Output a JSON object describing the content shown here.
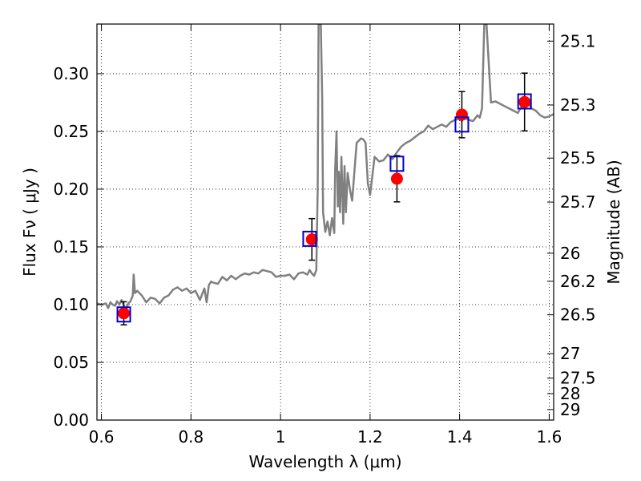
{
  "chart_data": {
    "type": "line",
    "title": "",
    "xlabel": "Wavelength  λ (μm)",
    "ylabel": "Flux  Fν  ( μJy )",
    "y2label": "Magnitude (AB)",
    "xlim": [
      0.59,
      1.61
    ],
    "ylim": [
      0.0,
      0.343
    ],
    "grid": true,
    "x_ticks": [
      {
        "value": 0.6,
        "label": "0.6"
      },
      {
        "value": 0.8,
        "label": "0.8"
      },
      {
        "value": 1.0,
        "label": "1"
      },
      {
        "value": 1.2,
        "label": "1.2"
      },
      {
        "value": 1.4,
        "label": "1.4"
      },
      {
        "value": 1.6,
        "label": "1.6"
      }
    ],
    "y_ticks": [
      {
        "value": 0.0,
        "label": "0.00"
      },
      {
        "value": 0.05,
        "label": "0.05"
      },
      {
        "value": 0.1,
        "label": "0.10"
      },
      {
        "value": 0.15,
        "label": "0.15"
      },
      {
        "value": 0.2,
        "label": "0.20"
      },
      {
        "value": 0.25,
        "label": "0.25"
      },
      {
        "value": 0.3,
        "label": "0.30"
      }
    ],
    "y2_ticks": [
      {
        "flux": 0.3282,
        "label": "25.1"
      },
      {
        "flux": 0.2729,
        "label": "25.3"
      },
      {
        "flux": 0.2269,
        "label": "25.5"
      },
      {
        "flux": 0.1888,
        "label": "25.7"
      },
      {
        "flux": 0.1445,
        "label": "26"
      },
      {
        "flux": 0.1202,
        "label": "26.2"
      },
      {
        "flux": 0.0912,
        "label": "26.5"
      },
      {
        "flux": 0.0575,
        "label": "27"
      },
      {
        "flux": 0.0363,
        "label": "27.5"
      },
      {
        "flux": 0.0229,
        "label": "28"
      },
      {
        "flux": 0.0091,
        "label": "29"
      }
    ],
    "series": [
      {
        "kind": "model_spectrum",
        "color": "#808080",
        "x": [
          0.59,
          0.6,
          0.61,
          0.615,
          0.62,
          0.625,
          0.63,
          0.635,
          0.64,
          0.645,
          0.65,
          0.655,
          0.66,
          0.665,
          0.67,
          0.672,
          0.675,
          0.68,
          0.69,
          0.7,
          0.71,
          0.72,
          0.73,
          0.74,
          0.75,
          0.76,
          0.77,
          0.78,
          0.79,
          0.8,
          0.81,
          0.82,
          0.83,
          0.835,
          0.84,
          0.845,
          0.85,
          0.86,
          0.87,
          0.88,
          0.89,
          0.9,
          0.91,
          0.92,
          0.93,
          0.94,
          0.95,
          0.96,
          0.97,
          0.98,
          0.99,
          1.0,
          1.01,
          1.02,
          1.03,
          1.04,
          1.05,
          1.06,
          1.065,
          1.07,
          1.075,
          1.08,
          1.083,
          1.085,
          1.087,
          1.09,
          1.093,
          1.095,
          1.1,
          1.105,
          1.11,
          1.115,
          1.12,
          1.122,
          1.125,
          1.128,
          1.13,
          1.133,
          1.136,
          1.14,
          1.143,
          1.146,
          1.15,
          1.155,
          1.16,
          1.17,
          1.18,
          1.185,
          1.19,
          1.195,
          1.2,
          1.21,
          1.22,
          1.23,
          1.24,
          1.25,
          1.26,
          1.27,
          1.28,
          1.29,
          1.3,
          1.31,
          1.32,
          1.33,
          1.34,
          1.35,
          1.36,
          1.37,
          1.38,
          1.39,
          1.4,
          1.405,
          1.41,
          1.42,
          1.43,
          1.44,
          1.445,
          1.45,
          1.455,
          1.46,
          1.47,
          1.48,
          1.49,
          1.5,
          1.51,
          1.52,
          1.53,
          1.54,
          1.55,
          1.56,
          1.57,
          1.58,
          1.59,
          1.6,
          1.61
        ],
        "y": [
          0.101,
          0.1,
          0.101,
          0.097,
          0.102,
          0.1,
          0.099,
          0.103,
          0.1,
          0.104,
          0.099,
          0.096,
          0.101,
          0.103,
          0.108,
          0.126,
          0.11,
          0.112,
          0.108,
          0.102,
          0.106,
          0.105,
          0.101,
          0.106,
          0.108,
          0.113,
          0.115,
          0.112,
          0.114,
          0.11,
          0.112,
          0.104,
          0.114,
          0.102,
          0.117,
          0.12,
          0.119,
          0.118,
          0.124,
          0.121,
          0.125,
          0.122,
          0.125,
          0.127,
          0.126,
          0.128,
          0.127,
          0.13,
          0.129,
          0.128,
          0.124,
          0.125,
          0.125,
          0.126,
          0.122,
          0.127,
          0.128,
          0.126,
          0.13,
          0.127,
          0.125,
          0.13,
          0.2,
          0.343,
          0.343,
          0.343,
          0.28,
          0.18,
          0.163,
          0.172,
          0.16,
          0.175,
          0.162,
          0.217,
          0.25,
          0.185,
          0.215,
          0.18,
          0.228,
          0.17,
          0.22,
          0.18,
          0.214,
          0.2,
          0.19,
          0.24,
          0.244,
          0.243,
          0.24,
          0.205,
          0.195,
          0.228,
          0.224,
          0.225,
          0.23,
          0.226,
          0.232,
          0.237,
          0.24,
          0.242,
          0.245,
          0.248,
          0.25,
          0.255,
          0.252,
          0.254,
          0.256,
          0.254,
          0.258,
          0.26,
          0.261,
          0.259,
          0.262,
          0.26,
          0.259,
          0.264,
          0.262,
          0.27,
          0.343,
          0.343,
          0.275,
          0.276,
          0.274,
          0.272,
          0.27,
          0.268,
          0.266,
          0.273,
          0.279,
          0.27,
          0.268,
          0.264,
          0.262,
          0.263,
          0.265
        ]
      },
      {
        "kind": "model_band_flux",
        "marker": "square",
        "color": "#0000cc",
        "x": [
          0.65,
          1.065,
          1.26,
          1.405,
          1.545
        ],
        "y": [
          0.0915,
          0.157,
          0.222,
          0.256,
          0.276
        ]
      },
      {
        "kind": "observed_photometry",
        "marker": "circle",
        "color": "#ff0000",
        "x": [
          0.65,
          1.07,
          1.26,
          1.405,
          1.545
        ],
        "y": [
          0.0925,
          0.1565,
          0.209,
          0.2645,
          0.2755
        ],
        "yerr": [
          0.01,
          0.018,
          0.02,
          0.02,
          0.025
        ]
      }
    ]
  }
}
